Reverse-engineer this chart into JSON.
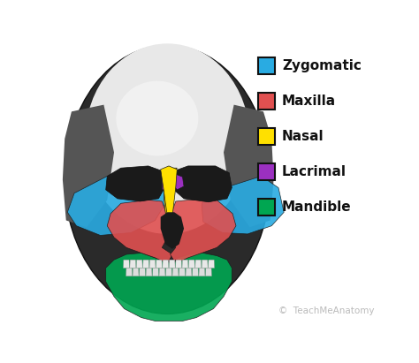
{
  "legend_items": [
    {
      "label": "Zygomatic",
      "color": "#29ABE2"
    },
    {
      "label": "Maxilla",
      "color": "#E05050"
    },
    {
      "label": "Nasal",
      "color": "#FFE000"
    },
    {
      "label": "Lacrimal",
      "color": "#9B30C0"
    },
    {
      "label": "Mandible",
      "color": "#00A651"
    }
  ],
  "legend_box_edgecolor": "#111111",
  "legend_text_color": "#111111",
  "legend_text_fontsize": 11,
  "legend_text_fontweight": "bold",
  "background_color": "#FFFFFF",
  "watermark_text": "©  TeachMeAnatomy",
  "watermark_color": "#BBBBBB",
  "watermark_fontsize": 7.5,
  "fig_width": 4.74,
  "fig_height": 4.11,
  "dpi": 100
}
